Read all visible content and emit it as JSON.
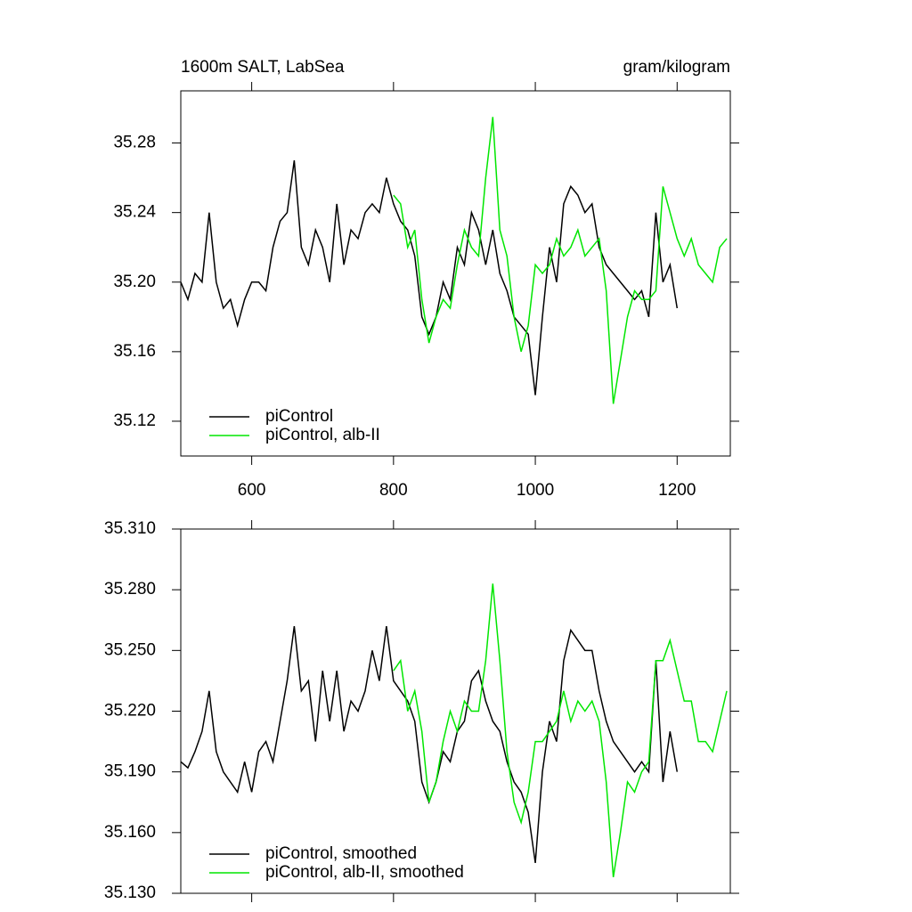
{
  "chart_data": [
    {
      "type": "line",
      "left_title": "1600m SALT, LabSea",
      "right_title": "gram/kilogram",
      "x": [
        500,
        510,
        520,
        530,
        540,
        550,
        560,
        570,
        580,
        590,
        600,
        610,
        620,
        630,
        640,
        650,
        660,
        670,
        680,
        690,
        700,
        710,
        720,
        730,
        740,
        750,
        760,
        770,
        780,
        790,
        800,
        810,
        820,
        830,
        840,
        850,
        860,
        870,
        880,
        890,
        900,
        910,
        920,
        930,
        940,
        950,
        960,
        970,
        980,
        990,
        1000,
        1010,
        1020,
        1030,
        1040,
        1050,
        1060,
        1070,
        1080,
        1090,
        1100,
        1110,
        1120,
        1130,
        1140,
        1150,
        1160,
        1170,
        1180,
        1190,
        1200,
        1210,
        1220,
        1230,
        1240,
        1250,
        1260,
        1270
      ],
      "series": [
        {
          "name": "piControl",
          "color": "#000000",
          "values": [
            35.2,
            35.19,
            35.205,
            35.2,
            35.24,
            35.2,
            35.185,
            35.19,
            35.175,
            35.19,
            35.2,
            35.2,
            35.195,
            35.22,
            35.235,
            35.24,
            35.27,
            35.22,
            35.21,
            35.23,
            35.22,
            35.2,
            35.245,
            35.21,
            35.23,
            35.225,
            35.24,
            35.245,
            35.24,
            35.26,
            35.245,
            35.235,
            35.23,
            35.215,
            35.18,
            35.17,
            35.18,
            35.2,
            35.19,
            35.22,
            35.21,
            35.24,
            35.23,
            35.21,
            35.23,
            35.205,
            35.195,
            35.18,
            35.175,
            35.17,
            35.135,
            35.18,
            35.22,
            35.2,
            35.245,
            35.255,
            35.25,
            35.24,
            35.245,
            35.22,
            35.21,
            35.205,
            35.2,
            35.195,
            35.19,
            35.195,
            35.18,
            35.24,
            35.2,
            35.21,
            35.185,
            null,
            null,
            null,
            null,
            null,
            null,
            null
          ]
        },
        {
          "name": "piControl, alb-II",
          "color": "#00e600",
          "values": [
            null,
            null,
            null,
            null,
            null,
            null,
            null,
            null,
            null,
            null,
            null,
            null,
            null,
            null,
            null,
            null,
            null,
            null,
            null,
            null,
            null,
            null,
            null,
            null,
            null,
            null,
            null,
            null,
            null,
            null,
            35.25,
            35.245,
            35.22,
            35.23,
            35.19,
            35.165,
            35.18,
            35.19,
            35.185,
            35.21,
            35.23,
            35.22,
            35.215,
            35.26,
            35.295,
            35.23,
            35.215,
            35.18,
            35.16,
            35.175,
            35.21,
            35.205,
            35.21,
            35.225,
            35.215,
            35.22,
            35.23,
            35.215,
            35.22,
            35.225,
            35.195,
            35.13,
            35.155,
            35.18,
            35.195,
            35.19,
            35.19,
            35.195,
            35.255,
            35.24,
            35.225,
            35.215,
            35.225,
            35.21,
            35.205,
            35.2,
            35.22,
            35.225
          ]
        }
      ],
      "xlim": [
        500,
        1275
      ],
      "ylim": [
        35.1,
        35.31
      ],
      "xticks": [
        600,
        800,
        1000,
        1200
      ],
      "yticks": [
        35.12,
        35.16,
        {
          "value": 35.2,
          "label": "35.20"
        },
        35.24,
        35.28
      ],
      "legend": "lower left"
    },
    {
      "type": "line",
      "x": [
        500,
        510,
        520,
        530,
        540,
        550,
        560,
        570,
        580,
        590,
        600,
        610,
        620,
        630,
        640,
        650,
        660,
        670,
        680,
        690,
        700,
        710,
        720,
        730,
        740,
        750,
        760,
        770,
        780,
        790,
        800,
        810,
        820,
        830,
        840,
        850,
        860,
        870,
        880,
        890,
        900,
        910,
        920,
        930,
        940,
        950,
        960,
        970,
        980,
        990,
        1000,
        1010,
        1020,
        1030,
        1040,
        1050,
        1060,
        1070,
        1080,
        1090,
        1100,
        1110,
        1120,
        1130,
        1140,
        1150,
        1160,
        1170,
        1180,
        1190,
        1200,
        1210,
        1220,
        1230,
        1240,
        1250,
        1260,
        1270
      ],
      "series": [
        {
          "name": "piControl, smoothed",
          "color": "#000000",
          "values": [
            35.195,
            35.192,
            35.2,
            35.21,
            35.23,
            35.2,
            35.19,
            35.185,
            35.18,
            35.195,
            35.18,
            35.2,
            35.205,
            35.195,
            35.215,
            35.235,
            35.262,
            35.23,
            35.235,
            35.205,
            35.24,
            35.215,
            35.24,
            35.21,
            35.225,
            35.22,
            35.23,
            35.25,
            35.235,
            35.262,
            35.235,
            35.23,
            35.225,
            35.215,
            35.185,
            35.175,
            35.185,
            35.2,
            35.195,
            35.21,
            35.215,
            35.235,
            35.24,
            35.225,
            35.215,
            35.21,
            35.195,
            35.185,
            35.18,
            35.17,
            35.145,
            35.19,
            35.215,
            35.205,
            35.245,
            35.26,
            35.255,
            35.25,
            35.25,
            35.23,
            35.215,
            35.205,
            35.2,
            35.195,
            35.19,
            35.195,
            35.19,
            35.245,
            35.185,
            35.21,
            35.19,
            null,
            null,
            null,
            null,
            null,
            null,
            null
          ]
        },
        {
          "name": "piControl, alb-II, smoothed",
          "color": "#00e600",
          "values": [
            null,
            null,
            null,
            null,
            null,
            null,
            null,
            null,
            null,
            null,
            null,
            null,
            null,
            null,
            null,
            null,
            null,
            null,
            null,
            null,
            null,
            null,
            null,
            null,
            null,
            null,
            null,
            null,
            null,
            null,
            35.24,
            35.245,
            35.22,
            35.23,
            35.21,
            35.175,
            35.185,
            35.205,
            35.22,
            35.21,
            35.225,
            35.22,
            35.22,
            35.245,
            35.283,
            35.245,
            35.2,
            35.175,
            35.165,
            35.18,
            35.205,
            35.205,
            35.21,
            35.215,
            35.23,
            35.215,
            35.225,
            35.22,
            35.225,
            35.215,
            35.185,
            35.138,
            35.16,
            35.185,
            35.18,
            35.19,
            35.195,
            35.245,
            35.245,
            35.255,
            35.24,
            35.225,
            35.225,
            35.205,
            35.205,
            35.2,
            35.215,
            35.23
          ]
        }
      ],
      "xlim": [
        500,
        1275
      ],
      "ylim": [
        35.13,
        35.31
      ],
      "xticks": [
        600,
        800,
        1000,
        1200
      ],
      "yticks": [
        {
          "value": 35.13,
          "label": "35.130"
        },
        {
          "value": 35.16,
          "label": "35.160"
        },
        {
          "value": 35.19,
          "label": "35.190"
        },
        {
          "value": 35.22,
          "label": "35.220"
        },
        {
          "value": 35.25,
          "label": "35.250"
        },
        {
          "value": 35.28,
          "label": "35.280"
        },
        {
          "value": 35.31,
          "label": "35.310"
        }
      ],
      "legend": "lower left"
    }
  ]
}
